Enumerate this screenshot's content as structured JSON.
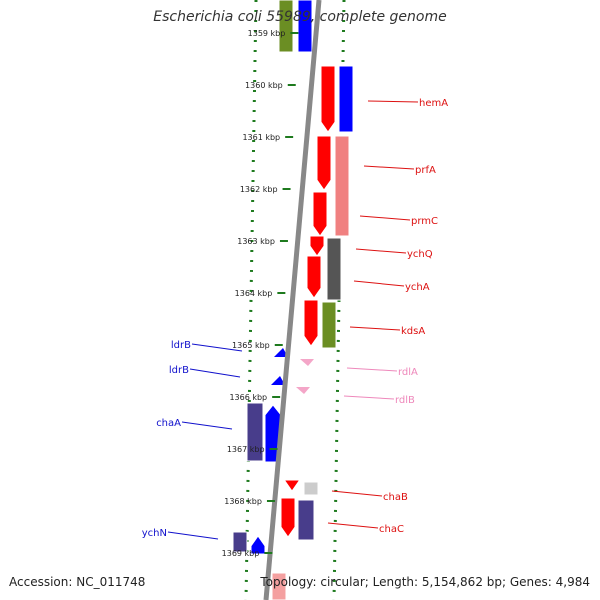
{
  "title": "Escherichia coli 55989, complete genome",
  "footer": {
    "accession": "Accession: NC_011748",
    "topology": "Topology: circular; Length: 5,154,862 bp; Genes: 4,984"
  },
  "ticks": [
    {
      "label": "1359 kbp",
      "kbp": 1359
    },
    {
      "label": "1360 kbp",
      "kbp": 1360
    },
    {
      "label": "1361 kbp",
      "kbp": 1361
    },
    {
      "label": "1362 kbp",
      "kbp": 1362
    },
    {
      "label": "1363 kbp",
      "kbp": 1363
    },
    {
      "label": "1364 kbp",
      "kbp": 1364
    },
    {
      "label": "1365 kbp",
      "kbp": 1365
    },
    {
      "label": "1366 kbp",
      "kbp": 1366
    },
    {
      "label": "1367 kbp",
      "kbp": 1367
    },
    {
      "label": "1368 kbp",
      "kbp": 1368
    },
    {
      "label": "1369 kbp",
      "kbp": 1369
    }
  ],
  "genes": [
    {
      "name": "hemA",
      "side": "right",
      "color": "#dd1111"
    },
    {
      "name": "prfA",
      "side": "right",
      "color": "#dd1111"
    },
    {
      "name": "prmC",
      "side": "right",
      "color": "#dd1111"
    },
    {
      "name": "ychQ",
      "side": "right",
      "color": "#dd1111"
    },
    {
      "name": "ychA",
      "side": "right",
      "color": "#dd1111"
    },
    {
      "name": "kdsA",
      "side": "right",
      "color": "#dd1111"
    },
    {
      "name": "ldrB",
      "side": "left",
      "color": "#1111cc"
    },
    {
      "name": "ldrB",
      "side": "left",
      "color": "#1111cc"
    },
    {
      "name": "rdlA",
      "side": "right",
      "color": "#ee88bb"
    },
    {
      "name": "rdlB",
      "side": "right",
      "color": "#ee88bb"
    },
    {
      "name": "chaA",
      "side": "left",
      "color": "#1111cc"
    },
    {
      "name": "chaB",
      "side": "right",
      "color": "#dd1111"
    },
    {
      "name": "chaC",
      "side": "right",
      "color": "#dd1111"
    },
    {
      "name": "ychN",
      "side": "left",
      "color": "#1111cc"
    }
  ],
  "colors": {
    "forward_cds": "#ff0000",
    "reverse_cds": "#0000ff",
    "cog_purple": "#483d8b",
    "cog_olive": "#6b8e23",
    "cog_grey": "#555555",
    "cog_pink": "#f08080",
    "tick_green": "#1e7a1e",
    "backbone": "#888888"
  }
}
